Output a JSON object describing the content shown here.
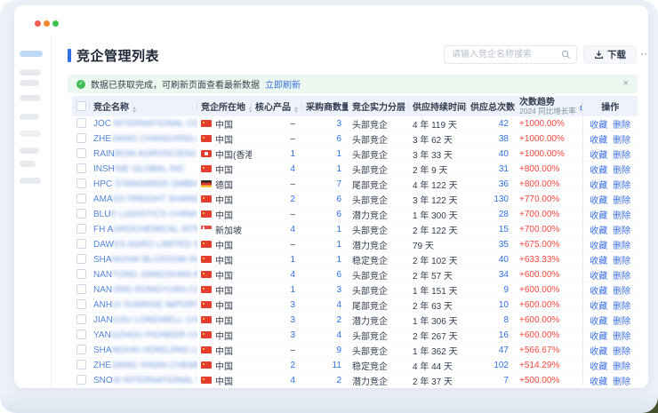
{
  "page": {
    "title": "竞企管理列表",
    "search_placeholder": "请输入竞企名称搜索",
    "download_label": "下载",
    "more_label": "⋯",
    "notice": {
      "text": "数据已获取完成，可刷新页面查看最新数据",
      "action": "立即刷新",
      "close": "×"
    }
  },
  "colors": {
    "accent_blue": "#2f6fe4",
    "link_blue": "#3a6fe0",
    "trend_red": "#f5463d",
    "success_green": "#3fbd58",
    "header_bg": "#eef2fa"
  },
  "table": {
    "columns": [
      {
        "label": "竞企名称",
        "sortable": true
      },
      {
        "label": "竞企所在地",
        "sortable": true
      },
      {
        "label": "核心产品",
        "sortable": true
      },
      {
        "label": "采购商数量",
        "sortable": true
      },
      {
        "label": "竞企实力分层",
        "sortable": true
      },
      {
        "label": "供应持续时间",
        "sortable": true
      },
      {
        "label": "供应总次数",
        "sortable": true
      },
      {
        "label": "次数趋势",
        "sublabel": "2024 同比增长率",
        "sortable": true,
        "sort_active": true
      },
      {
        "label": "操作",
        "sortable": false
      }
    ],
    "actions": [
      "收藏",
      "删除"
    ],
    "rows": [
      {
        "name_prefix": "JOC",
        "name_hidden": " INTERNATIONAL CORP",
        "name_suffix": "",
        "flag": "cn",
        "location": "中国",
        "core": "–",
        "buyers": "3",
        "tier": "头部竞企",
        "duration": "4 年 119 天",
        "total": "42",
        "trend": "+1000.00%"
      },
      {
        "name_prefix": "ZHE",
        "name_hidden": "JIANG CHANGXING ZHEN",
        "name_suffix": "GSH...",
        "flag": "cn",
        "location": "中国",
        "core": "–",
        "buyers": "6",
        "tier": "头部竞企",
        "duration": "3 年 62 天",
        "total": "38",
        "trend": "+1000.00%"
      },
      {
        "name_prefix": "RAIN",
        "name_hidden": "BOW AGROSCIENC",
        "name_suffix": "E CO ...",
        "flag": "hk",
        "location": "中国(香港)",
        "core": "1",
        "buyers": "1",
        "tier": "头部竞企",
        "duration": "3 年 33 天",
        "total": "40",
        "trend": "+1000.00%"
      },
      {
        "name_prefix": "INSH",
        "name_hidden": "INE GLOBAL INC",
        "name_suffix": "",
        "flag": "cn",
        "location": "中国",
        "core": "4",
        "buyers": "1",
        "tier": "头部竞企",
        "duration": "2 年 9 天",
        "total": "31",
        "trend": "+800.00%"
      },
      {
        "name_prefix": "HPC",
        "name_hidden": " STANDARDS GMBH",
        "name_suffix": "",
        "flag": "de",
        "location": "德国",
        "core": "–",
        "buyers": "7",
        "tier": "尾部竞企",
        "duration": "4 年 122 天",
        "total": "36",
        "trend": "+800.00%"
      },
      {
        "name_prefix": "AMA",
        "name_hidden": "SS FREIGHT SHANGHAI CO ",
        "name_suffix": "LTD",
        "flag": "cn",
        "location": "中国",
        "core": "2",
        "buyers": "6",
        "tier": "头部竞企",
        "duration": "3 年 122 天",
        "total": "130",
        "trend": "+770.00%"
      },
      {
        "name_prefix": "BLU",
        "name_hidden": "E LOGISTICS CHINA CO L",
        "name_suffix": "TD",
        "flag": "cn",
        "location": "中国",
        "core": "–",
        "buyers": "6",
        "tier": "潜力竞企",
        "duration": "1 年 300 天",
        "total": "28",
        "trend": "+700.00%"
      },
      {
        "name_prefix": "FH A",
        "name_hidden": "GROCHEMICAL INTERN",
        "name_suffix": "ATION...",
        "flag": "sg",
        "location": "新加坡",
        "core": "4",
        "buyers": "1",
        "tier": "头部竞企",
        "duration": "2 年 122 天",
        "total": "15",
        "trend": "+700.00%"
      },
      {
        "name_prefix": "DAW",
        "name_hidden": "ES AGRO LIMITED SHAN",
        "name_suffix": "GHA...",
        "flag": "cn",
        "location": "中国",
        "core": "–",
        "buyers": "1",
        "tier": "潜力竞企",
        "duration": "79 天",
        "total": "35",
        "trend": "+675.00%"
      },
      {
        "name_prefix": "SHA",
        "name_hidden": "NGHAI BLOSSOM INTER",
        "name_suffix": "NATIO...",
        "flag": "cn",
        "location": "中国",
        "core": "1",
        "buyers": "1",
        "tier": "稳定竞企",
        "duration": "2 年 102 天",
        "total": "40",
        "trend": "+633.33%"
      },
      {
        "name_prefix": "NAN",
        "name_hidden": "TONG JIANGSHAN AGRO",
        "name_suffix": "CHE...",
        "flag": "cn",
        "location": "中国",
        "core": "4",
        "buyers": "6",
        "tier": "头部竞企",
        "duration": "2 年 57 天",
        "total": "34",
        "trend": "+600.00%"
      },
      {
        "name_prefix": "NAN",
        "name_hidden": "JING RONGYUAN CO LTD",
        "name_suffix": "",
        "flag": "cn",
        "location": "中国",
        "core": "1",
        "buyers": "3",
        "tier": "头部竞企",
        "duration": "1 年 151 天",
        "total": "9",
        "trend": "+600.00%"
      },
      {
        "name_prefix": "ANH",
        "name_hidden": "UI SUNRISE IMPORT AND ",
        "name_suffix": "EXP...",
        "flag": "cn",
        "location": "中国",
        "core": "3",
        "buyers": "4",
        "tier": "尾部竞企",
        "duration": "2 年 63 天",
        "total": "10",
        "trend": "+600.00%"
      },
      {
        "name_prefix": "JIAN",
        "name_hidden": "GSU LONGWELL CHEMI",
        "name_suffix": "CAL ...",
        "flag": "cn",
        "location": "中国",
        "core": "3",
        "buyers": "2",
        "tier": "潜力竞企",
        "duration": "1 年 306 天",
        "total": "8",
        "trend": "+600.00%"
      },
      {
        "name_prefix": "YAN",
        "name_hidden": "GZHOU PIONEER CHEMI",
        "name_suffix": "CAL ...",
        "flag": "cn",
        "location": "中国",
        "core": "3",
        "buyers": "4",
        "tier": "头部竞企",
        "duration": "2 年 267 天",
        "total": "16",
        "trend": "+600.00%"
      },
      {
        "name_prefix": "SHA",
        "name_hidden": "NGHAI HONGJING LOGI",
        "name_suffix": "TSTI...",
        "flag": "cn",
        "location": "中国",
        "core": "–",
        "buyers": "9",
        "tier": "头部竞企",
        "duration": "1 年 362 天",
        "total": "47",
        "trend": "+566.67%"
      },
      {
        "name_prefix": "ZHE",
        "name_hidden": "JIANG XINAN CHEMICAL",
        "name_suffix": "",
        "flag": "cn",
        "location": "中国",
        "core": "2",
        "buyers": "11",
        "tier": "稳定竞企",
        "duration": "4 年 44 天",
        "total": "102",
        "trend": "+514.29%"
      },
      {
        "name_prefix": "SNO",
        "name_hidden": "W INTERNATIONAL TRADI",
        "name_suffix": "NG ...",
        "flag": "cn",
        "location": "中国",
        "core": "4",
        "buyers": "2",
        "tier": "潜力竞企",
        "duration": "2 年 37 天",
        "total": "7",
        "trend": "+500.00%"
      },
      {
        "partial": true,
        "name_prefix": "",
        "name_hidden": "XXXXX XXXXXXXX XXXX",
        "name_suffix": "",
        "flag": "",
        "location": "",
        "core": "",
        "buyers": "",
        "tier": "",
        "duration": "",
        "total": "",
        "trend": ""
      }
    ]
  }
}
